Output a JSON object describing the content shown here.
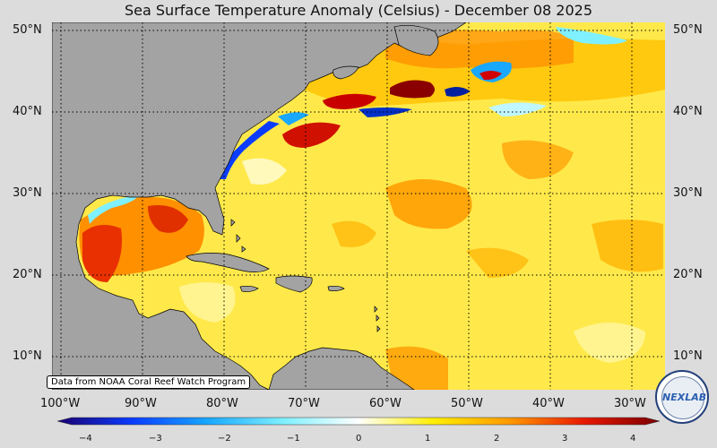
{
  "title": "Sea Surface Temperature Anomaly (Celsius) - December 08 2025",
  "credit": "Data from NOAA Coral Reef Watch Program",
  "logo_text": "NEXLAB",
  "lat_labels": [
    "50°N",
    "40°N",
    "30°N",
    "20°N",
    "10°N"
  ],
  "lon_labels": [
    "100°W",
    "90°W",
    "80°W",
    "70°W",
    "60°W",
    "50°W",
    "40°W",
    "30°W"
  ],
  "colorbar": {
    "ticks": [
      "−4",
      "−3",
      "−2",
      "−1",
      "0",
      "1",
      "2",
      "3",
      "4"
    ],
    "min": -4,
    "max": 4,
    "stops": [
      "#1a0070",
      "#0a3cff",
      "#18a8ff",
      "#7ef0ff",
      "#ffffff",
      "#ffee00",
      "#ff9a00",
      "#e81800",
      "#7a0000"
    ]
  },
  "map_data": {
    "type": "sst_anomaly_map",
    "units": "Celsius",
    "date": "December 08 2025",
    "lat_range": [
      6,
      51
    ],
    "lon_range": [
      -100,
      -27
    ],
    "gridlines": "dotted"
  },
  "colors": {
    "land": "#a3a3a3",
    "ocean_base": "#ffe94a",
    "background": "#dcdcdc"
  }
}
